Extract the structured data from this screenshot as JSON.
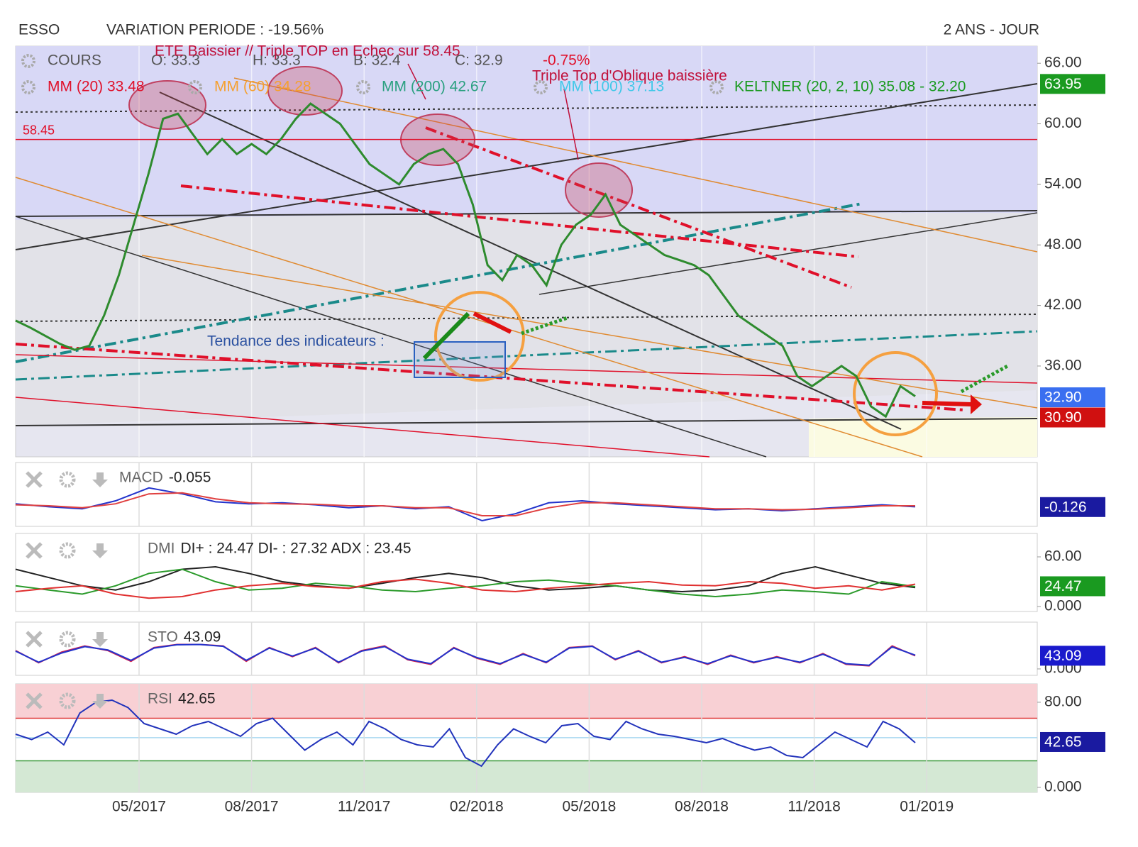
{
  "header": {
    "ticker": "ESSO",
    "variation": "VARIATION PERIODE : -19.56%",
    "period": "2 ANS - JOUR"
  },
  "chart_data": [
    {
      "type": "line",
      "title": "COURS",
      "legend_items": [
        {
          "text": "O: 33.3",
          "color": "#555555"
        },
        {
          "text": "H: 33.3",
          "color": "#555555"
        },
        {
          "text": "B: 32.4",
          "color": "#555555"
        },
        {
          "text": "C: 32.9",
          "color": "#555555"
        },
        {
          "text": "MM (20) 33.48",
          "color": "#e0102a"
        },
        {
          "text": "MM (60) 34.28",
          "color": "#f5a030"
        },
        {
          "text": "MM (200) 42.67",
          "color": "#2aa080"
        },
        {
          "text": "MM (100) 37.13",
          "color": "#40c8e8"
        },
        {
          "text": "KELTNER (20, 2, 10) 35.08 - 32.20",
          "color": "#1a9a20"
        }
      ],
      "annotations": [
        {
          "text": "ETE Baissier // Triple TOP en Echec sur 58.45",
          "color": "#c0103a"
        },
        {
          "text": "-0.75%",
          "color": "#e0102a"
        },
        {
          "text": "Triple Top d'Oblique baissière",
          "color": "#c0103a"
        },
        {
          "text": "Tendance des indicateurs :",
          "color": "#2a50a0"
        }
      ],
      "hline": {
        "value": 58.45,
        "label": "58.45",
        "color": "#e0102a"
      },
      "series": [
        {
          "color": "#2e8b2e",
          "values": [
            40.5,
            39.8,
            39,
            38.2,
            37.6,
            38,
            41,
            45,
            50,
            55,
            60.5,
            61,
            59,
            57,
            58.5,
            57,
            58,
            57,
            58.5,
            60.5,
            62,
            61,
            60,
            58,
            56,
            55,
            54,
            56,
            57,
            57.5,
            56,
            52,
            46,
            44.5,
            47,
            46,
            44,
            48,
            50,
            51,
            53,
            50,
            49,
            48,
            47,
            46.5,
            46,
            45,
            43,
            41,
            40,
            39,
            38,
            35,
            34,
            35,
            36,
            35,
            32,
            31,
            34,
            33
          ]
        }
      ],
      "ylim": [
        27,
        67.7
      ],
      "yticks": [
        {
          "value": 66,
          "label": "66.00"
        },
        {
          "value": 60,
          "label": "60.00"
        },
        {
          "value": 54,
          "label": "54.00"
        },
        {
          "value": 48,
          "label": "48.00"
        },
        {
          "value": 42,
          "label": "42.00"
        },
        {
          "value": 36,
          "label": "36.00"
        }
      ],
      "badges": [
        {
          "value": 63.95,
          "label": "63.95",
          "color": "#1a9a20"
        },
        {
          "value": 32.9,
          "label": "32.90",
          "color": "#3a6ff0"
        },
        {
          "value": 30.9,
          "label": "30.90",
          "color": "#d01010"
        }
      ],
      "xticks": [
        "05/2017",
        "08/2017",
        "11/2017",
        "02/2018",
        "05/2018",
        "08/2018",
        "11/2018",
        "01/2019"
      ]
    },
    {
      "type": "line",
      "title": "MACD",
      "readout": "-0.055",
      "series": [
        {
          "color": "#2233cc",
          "values": [
            0.2,
            -0.1,
            -0.3,
            0.5,
            1.8,
            1.2,
            0.4,
            0.2,
            0.3,
            0.1,
            -0.2,
            0,
            -0.3,
            -0.1,
            -1.5,
            -0.8,
            0.3,
            0.5,
            0.2,
            0,
            -0.2,
            -0.4,
            -0.3,
            -0.5,
            -0.3,
            -0.1,
            0.1,
            -0.1
          ]
        },
        {
          "color": "#e04040",
          "values": [
            0.1,
            0,
            -0.2,
            0.2,
            1.2,
            1.3,
            0.7,
            0.3,
            0.2,
            0.15,
            0,
            0,
            -0.2,
            -0.2,
            -1,
            -1,
            -0.2,
            0.3,
            0.3,
            0.1,
            -0.1,
            -0.3,
            -0.3,
            -0.4,
            -0.35,
            -0.2,
            0,
            0
          ]
        }
      ],
      "ylim": [
        -2.07,
        4.36
      ],
      "badges": [
        {
          "value": -0.126,
          "label": "-0.126",
          "color": "#1a1aa0"
        }
      ]
    },
    {
      "type": "line",
      "title": "DMI",
      "readout": "DI+ : 24.47 DI- : 27.32 ADX : 23.45",
      "series": [
        {
          "color": "#222222",
          "values": [
            45,
            35,
            25,
            20,
            30,
            45,
            48,
            40,
            30,
            25,
            22,
            28,
            35,
            40,
            35,
            25,
            20,
            22,
            25,
            20,
            18,
            20,
            25,
            40,
            48,
            38,
            28,
            23
          ]
        },
        {
          "color": "#2a9a2a",
          "values": [
            25,
            20,
            15,
            25,
            40,
            45,
            30,
            20,
            22,
            28,
            25,
            20,
            18,
            22,
            25,
            30,
            32,
            28,
            25,
            20,
            15,
            12,
            15,
            20,
            18,
            15,
            30,
            24
          ]
        },
        {
          "color": "#e03030",
          "values": [
            18,
            22,
            25,
            15,
            10,
            12,
            20,
            25,
            28,
            24,
            22,
            30,
            33,
            28,
            20,
            18,
            22,
            25,
            28,
            30,
            26,
            25,
            30,
            28,
            22,
            25,
            20,
            27
          ]
        }
      ],
      "ylim": [
        -6,
        88.3
      ],
      "yticks": [
        {
          "value": 60,
          "label": "60.00"
        },
        {
          "value": 0,
          "label": "0.000"
        }
      ],
      "badges": [
        {
          "value": 24.47,
          "label": "24.47",
          "color": "#1a9a20"
        }
      ]
    },
    {
      "type": "line",
      "title": "STO",
      "readout": "43.09",
      "series": [
        {
          "color": "#d02050",
          "values": [
            60,
            20,
            55,
            75,
            60,
            25,
            70,
            80,
            80,
            75,
            25,
            70,
            40,
            70,
            20,
            60,
            75,
            30,
            15,
            70,
            35,
            15,
            50,
            20,
            70,
            75,
            30,
            60,
            20,
            40,
            15,
            45,
            20,
            40,
            20,
            50,
            15,
            10,
            75,
            43
          ]
        },
        {
          "color": "#2233cc",
          "values": [
            58,
            22,
            52,
            73,
            62,
            28,
            68,
            79,
            80,
            74,
            28,
            68,
            42,
            68,
            22,
            58,
            73,
            32,
            17,
            68,
            37,
            17,
            48,
            22,
            68,
            74,
            32,
            58,
            22,
            38,
            17,
            43,
            22,
            38,
            22,
            48,
            17,
            12,
            72,
            45
          ]
        }
      ],
      "ylim": [
        -21,
        153
      ],
      "yticks": [
        {
          "value": 0,
          "label": "0.000"
        }
      ],
      "badges": [
        {
          "value": 43.09,
          "label": "43.09",
          "color": "#1a1acc"
        }
      ]
    },
    {
      "type": "line",
      "title": "RSI",
      "readout": "42.65",
      "series": [
        {
          "color": "#2233bb",
          "values": [
            50,
            45,
            52,
            40,
            70,
            80,
            82,
            75,
            60,
            55,
            50,
            58,
            62,
            55,
            48,
            60,
            65,
            50,
            35,
            45,
            52,
            40,
            62,
            55,
            45,
            40,
            38,
            55,
            28,
            20,
            40,
            55,
            48,
            42,
            58,
            60,
            48,
            45,
            62,
            55,
            50,
            48,
            45,
            42,
            46,
            40,
            35,
            38,
            30,
            28,
            40,
            52,
            45,
            38,
            62,
            55,
            42
          ]
        }
      ],
      "levels": [
        {
          "value": 65,
          "color": "#e03a3a",
          "fill": "#f8d0d4",
          "side": "above"
        },
        {
          "value": 46.7,
          "color": "#a8d8f0"
        },
        {
          "value": 25,
          "color": "#3a9a3a",
          "fill": "#d4e8d4",
          "side": "below"
        }
      ],
      "ylim": [
        -4.7,
        97.3
      ],
      "yticks": [
        {
          "value": 80,
          "label": "80.00"
        },
        {
          "value": 0,
          "label": "0.000"
        }
      ],
      "badges": [
        {
          "value": 42.65,
          "label": "42.65",
          "color": "#1a1aa0"
        }
      ]
    }
  ]
}
